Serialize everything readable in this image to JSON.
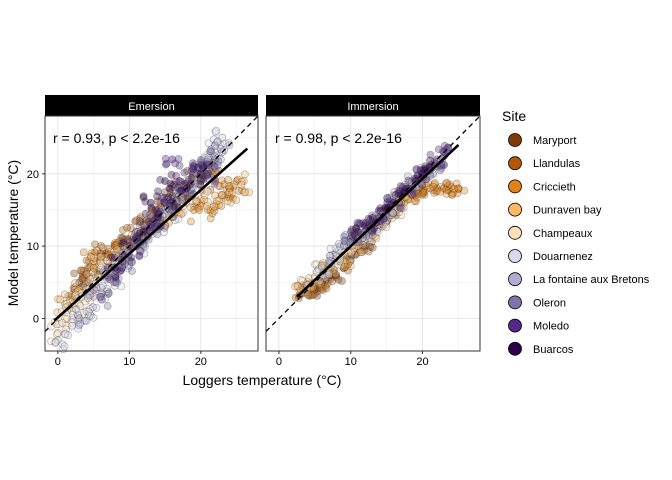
{
  "chart_data": {
    "type": "scatter",
    "xlabel": "Loggers temperature (°C)",
    "ylabel": "Model temperature (°C)",
    "xlim": [
      -1.8,
      28
    ],
    "ylim": [
      -4.5,
      28
    ],
    "xticks": [
      0,
      10,
      20
    ],
    "yticks": [
      0,
      10,
      20
    ],
    "grid": true,
    "identity_line": "dashed",
    "legend": {
      "title": "Site",
      "position": "right",
      "entries": [
        {
          "label": "Maryport",
          "color": "#7f3b08"
        },
        {
          "label": "Llandulas",
          "color": "#b35806"
        },
        {
          "label": "Criccieth",
          "color": "#e08214"
        },
        {
          "label": "Dunraven bay",
          "color": "#fdb863"
        },
        {
          "label": "Champeaux",
          "color": "#fee0b6"
        },
        {
          "label": "Douarnenez",
          "color": "#d8daeb"
        },
        {
          "label": "La fontaine aux Bretons",
          "color": "#b2abd2"
        },
        {
          "label": "Oleron",
          "color": "#8073ac"
        },
        {
          "label": "Moledo",
          "color": "#542788"
        },
        {
          "label": "Buarcos",
          "color": "#2d004b"
        }
      ]
    },
    "panels": [
      {
        "strip": "Emersion",
        "annotation": "r = 0.93, p < 2.2e-16",
        "fit_line": {
          "x": [
            -0.5,
            26.5
          ],
          "y": [
            -0.3,
            23.5
          ]
        },
        "series": [
          {
            "site": "Maryport",
            "points": [
              [
                3,
                5
              ],
              [
                5,
                7
              ],
              [
                7,
                9
              ],
              [
                9,
                10
              ],
              [
                11,
                12
              ],
              [
                13,
                14
              ],
              [
                15,
                16
              ],
              [
                17,
                18
              ],
              [
                19,
                19
              ],
              [
                21,
                20
              ]
            ]
          },
          {
            "site": "Llandulas",
            "points": [
              [
                2,
                3
              ],
              [
                4,
                6
              ],
              [
                6,
                9
              ],
              [
                8,
                10
              ],
              [
                10,
                11
              ],
              [
                12,
                13
              ],
              [
                14,
                15
              ],
              [
                16,
                16
              ],
              [
                18,
                17
              ],
              [
                20,
                19
              ],
              [
                22,
                19
              ]
            ]
          },
          {
            "site": "Criccieth",
            "points": [
              [
                4,
                8
              ],
              [
                6,
                8.5
              ],
              [
                8,
                10
              ],
              [
                12,
                12
              ],
              [
                16,
                14
              ],
              [
                19,
                15
              ],
              [
                21,
                15
              ],
              [
                23,
                17
              ],
              [
                24,
                18
              ],
              [
                25,
                19
              ]
            ]
          },
          {
            "site": "Dunraven bay",
            "points": [
              [
                1,
                2
              ],
              [
                3,
                4
              ],
              [
                5,
                7
              ],
              [
                7,
                8
              ],
              [
                10,
                10
              ],
              [
                14,
                14
              ],
              [
                18,
                16
              ],
              [
                20,
                16.5
              ],
              [
                22,
                17
              ],
              [
                24,
                17.5
              ],
              [
                26,
                19
              ]
            ]
          },
          {
            "site": "Champeaux",
            "points": [
              [
                0,
                -2
              ],
              [
                1,
                0
              ],
              [
                2,
                1
              ],
              [
                3,
                2
              ],
              [
                4,
                4
              ],
              [
                5,
                5
              ],
              [
                6,
                7
              ],
              [
                9,
                9
              ],
              [
                11,
                12
              ],
              [
                13,
                13
              ],
              [
                17,
                17
              ],
              [
                20,
                19
              ]
            ]
          },
          {
            "site": "Douarnenez",
            "points": [
              [
                0,
                -3
              ],
              [
                2,
                -1
              ],
              [
                4,
                1
              ],
              [
                6,
                3
              ],
              [
                8,
                6
              ],
              [
                10,
                8
              ],
              [
                12,
                10
              ],
              [
                14,
                13
              ],
              [
                16,
                15
              ],
              [
                18,
                18
              ],
              [
                20,
                21
              ],
              [
                22,
                24
              ],
              [
                23,
                25
              ]
            ]
          },
          {
            "site": "La fontaine aux Bretons",
            "points": [
              [
                3,
                0
              ],
              [
                5,
                3
              ],
              [
                7,
                6
              ],
              [
                9,
                8
              ],
              [
                11,
                11
              ],
              [
                13,
                12
              ],
              [
                15,
                15
              ],
              [
                17,
                17
              ],
              [
                19,
                20
              ],
              [
                21,
                22
              ],
              [
                23,
                23
              ]
            ]
          },
          {
            "site": "Oleron",
            "points": [
              [
                6,
                3
              ],
              [
                8,
                5
              ],
              [
                10,
                8
              ],
              [
                12,
                11
              ],
              [
                14,
                13
              ],
              [
                16,
                15
              ],
              [
                18,
                18
              ],
              [
                20,
                20
              ],
              [
                22,
                22
              ]
            ]
          },
          {
            "site": "Moledo",
            "points": [
              [
                9,
                7
              ],
              [
                11,
                10
              ],
              [
                13,
                13
              ],
              [
                15,
                16
              ],
              [
                17,
                19
              ],
              [
                19,
                21
              ],
              [
                21,
                20
              ],
              [
                16,
                22
              ]
            ]
          },
          {
            "site": "Buarcos",
            "points": [
              [
                8,
                7
              ],
              [
                10,
                10
              ],
              [
                12,
                12
              ],
              [
                14,
                14
              ],
              [
                16,
                17
              ],
              [
                18,
                18
              ],
              [
                20,
                20
              ],
              [
                15,
                19
              ],
              [
                13,
                16
              ]
            ]
          }
        ]
      },
      {
        "strip": "Immersion",
        "annotation": "r = 0.98, p < 2.2e-16",
        "fit_line": {
          "x": [
            2.5,
            25
          ],
          "y": [
            3.0,
            24.0
          ]
        },
        "series": [
          {
            "site": "Maryport",
            "points": [
              [
                5,
                4
              ],
              [
                6,
                5
              ],
              [
                8,
                6
              ],
              [
                10,
                8
              ],
              [
                12,
                10
              ],
              [
                14,
                13
              ],
              [
                16,
                15
              ]
            ]
          },
          {
            "site": "Llandulas",
            "points": [
              [
                3,
                3.5
              ],
              [
                4,
                4
              ],
              [
                5,
                4.5
              ],
              [
                6,
                5
              ],
              [
                7,
                6
              ],
              [
                9,
                7
              ],
              [
                11,
                10
              ]
            ]
          },
          {
            "site": "Criccieth",
            "points": [
              [
                17,
                16
              ],
              [
                18,
                16.5
              ],
              [
                19,
                17
              ],
              [
                20,
                17.5
              ],
              [
                21,
                18
              ],
              [
                22,
                18
              ],
              [
                23,
                18
              ],
              [
                24,
                18.2
              ],
              [
                25,
                18
              ]
            ]
          },
          {
            "site": "Dunraven bay",
            "points": [
              [
                3,
                4
              ],
              [
                5,
                5
              ],
              [
                7,
                7
              ],
              [
                9,
                8
              ],
              [
                11,
                10
              ],
              [
                13,
                12
              ],
              [
                15,
                14
              ],
              [
                17,
                16
              ]
            ]
          },
          {
            "site": "Champeaux",
            "points": [
              [
                4,
                5
              ],
              [
                6,
                7
              ],
              [
                8,
                8
              ],
              [
                10,
                10
              ],
              [
                12,
                11
              ],
              [
                14,
                13
              ],
              [
                16,
                15
              ]
            ]
          },
          {
            "site": "Douarnenez",
            "points": [
              [
                6,
                6
              ],
              [
                8,
                9
              ],
              [
                10,
                11
              ],
              [
                12,
                12
              ],
              [
                14,
                14
              ],
              [
                16,
                16
              ],
              [
                18,
                18
              ],
              [
                20,
                20
              ]
            ]
          },
          {
            "site": "La fontaine aux Bretons",
            "points": [
              [
                7,
                8
              ],
              [
                9,
                10
              ],
              [
                11,
                11
              ],
              [
                13,
                12
              ],
              [
                15,
                14
              ],
              [
                17,
                17
              ],
              [
                19,
                19
              ],
              [
                21,
                20
              ]
            ]
          },
          {
            "site": "Oleron",
            "points": [
              [
                10,
                11
              ],
              [
                12,
                12
              ],
              [
                14,
                14
              ],
              [
                16,
                16
              ],
              [
                18,
                18
              ],
              [
                20,
                20
              ],
              [
                22,
                21
              ]
            ]
          },
          {
            "site": "Moledo",
            "points": [
              [
                12,
                13
              ],
              [
                14,
                14
              ],
              [
                16,
                16
              ],
              [
                18,
                18
              ],
              [
                20,
                20
              ],
              [
                22,
                22
              ],
              [
                23,
                23
              ]
            ]
          },
          {
            "site": "Buarcos",
            "points": [
              [
                11,
                12
              ],
              [
                13,
                13
              ],
              [
                15,
                15
              ],
              [
                17,
                17
              ],
              [
                19,
                19
              ],
              [
                21,
                21
              ]
            ]
          }
        ]
      }
    ]
  }
}
